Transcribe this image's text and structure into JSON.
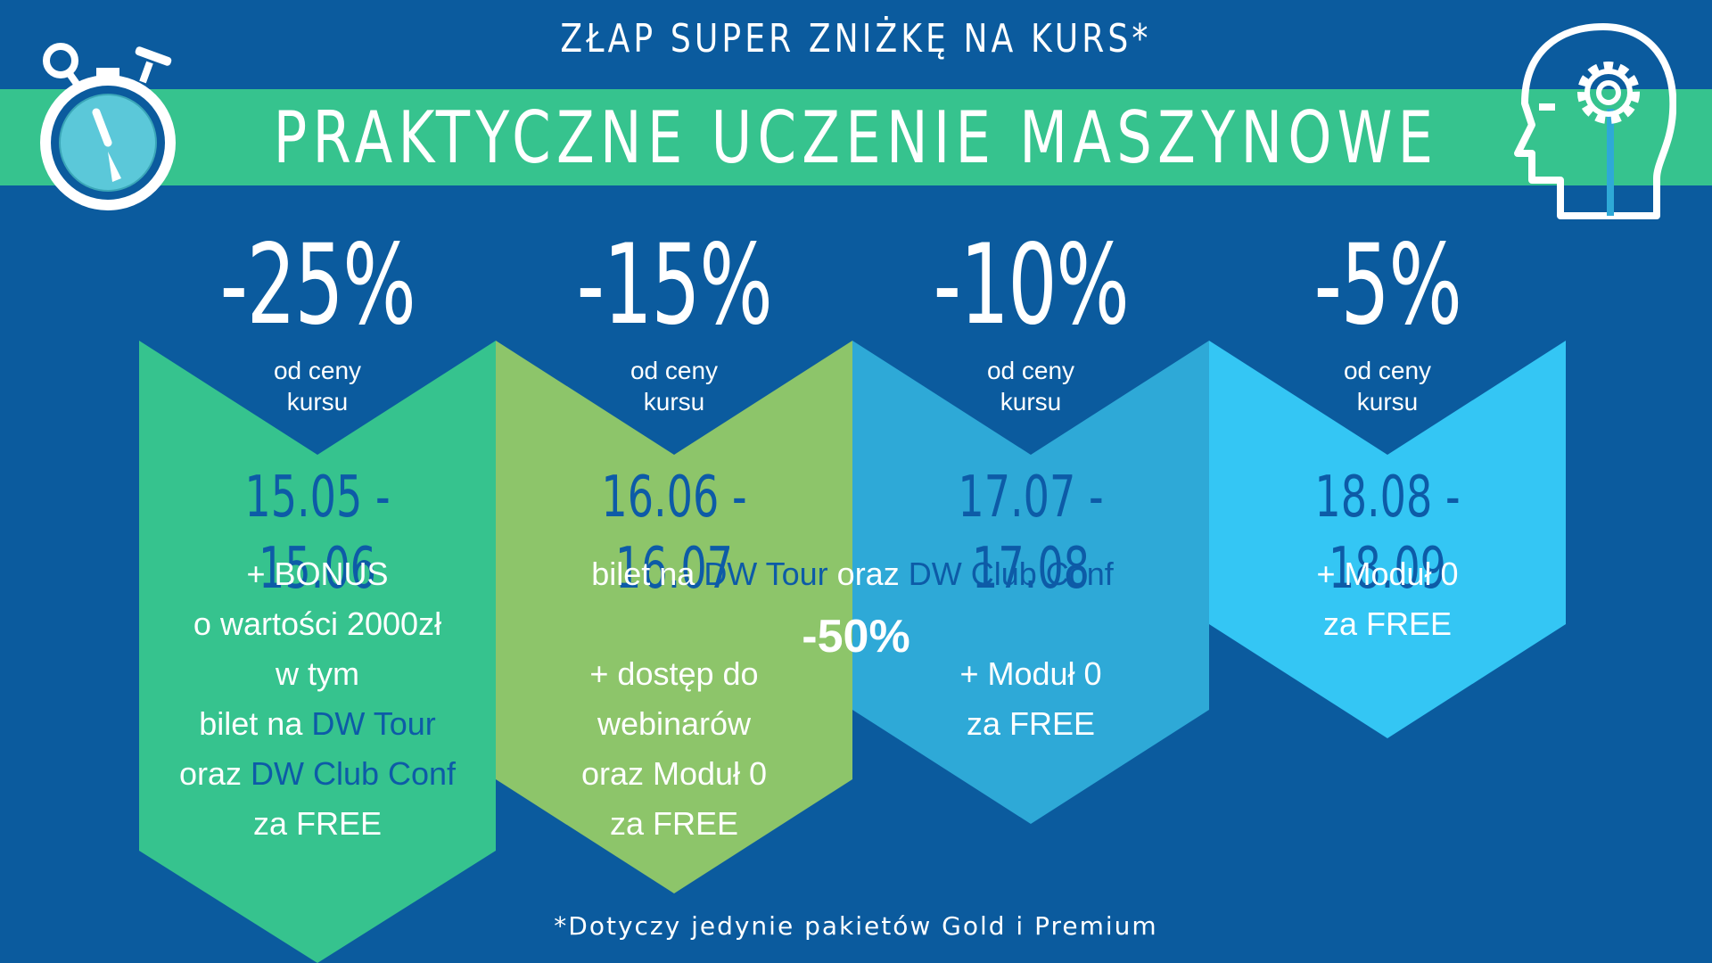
{
  "header": {
    "headline": "ZŁAP SUPER ZNIŻKĘ NA KURS*",
    "course_title": "PRAKTYCZNE UCZENIE MASZYNOWE",
    "timer_icon": "stopwatch-icon",
    "head_icon": "head-gear-icon"
  },
  "colors": {
    "background": "#0b5b9e",
    "banner": "#36c38e",
    "tier1": "#36c38e",
    "tier2": "#8dc56a",
    "tier3": "#2ea9d7",
    "tier4": "#34c6f4",
    "accent_text": "#0d5ba7"
  },
  "tiers": [
    {
      "discount": "-25%",
      "sub_line1": "od ceny",
      "sub_line2": "kursu",
      "dates": "15.05 - 15.06",
      "desc": {
        "l1": "+ BONUS",
        "l2": "o wartości 2000zł",
        "l3": "w tym",
        "l4_pre": "bilet na ",
        "l4_hl": "DW Tour",
        "l5_pre": "oraz ",
        "l5_hl": "DW Club Conf",
        "l6": "za FREE"
      }
    },
    {
      "discount": "-15%",
      "sub_line1": "od ceny",
      "sub_line2": "kursu",
      "dates": "16.06 - 16.07",
      "desc": {
        "l1_pre": "bilet na ",
        "l1_hl1": "DW Tour",
        "l1_mid": " oraz ",
        "l1_hl2": "DW Club Conf",
        "big": "-50%",
        "l2": "+ dostęp do",
        "l3": "webinarów",
        "l4": "oraz Moduł 0",
        "l5": "za FREE"
      }
    },
    {
      "discount": "-10%",
      "sub_line1": "od ceny",
      "sub_line2": "kursu",
      "dates": "17.07 - 17.08",
      "desc": {
        "l1": "+ Moduł 0",
        "l2": "za FREE"
      }
    },
    {
      "discount": "-5%",
      "sub_line1": "od ceny",
      "sub_line2": "kursu",
      "dates": "18.08 - 18.09",
      "desc": {
        "l1": "+ Moduł 0",
        "l2": "za FREE"
      }
    }
  ],
  "footnote": "*Dotyczy jedynie pakietów Gold i Premium"
}
